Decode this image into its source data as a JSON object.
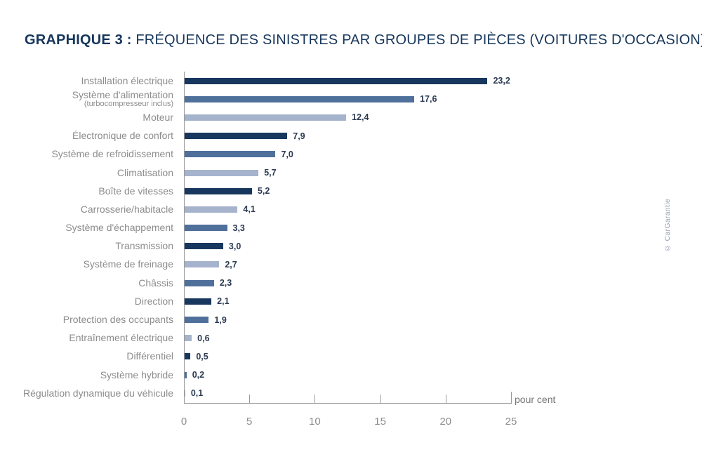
{
  "title": {
    "prefix": "GRAPHIQUE 3 :",
    "text": " FRÉQUENCE DES SINISTRES PAR GROUPES DE PIÈCES (VOITURES D'OCCASION)"
  },
  "credit": "© CarGarantie",
  "axis": {
    "unit_label": "pour cent"
  },
  "colors": {
    "dark": "#17375e",
    "medium": "#4f709b",
    "light": "#a5b3cd"
  },
  "chart_data": {
    "type": "bar",
    "orientation": "horizontal",
    "title": "GRAPHIQUE 3 : FRÉQUENCE DES SINISTRES PAR GROUPES DE PIÈCES (VOITURES D'OCCASION)",
    "xlabel": "pour cent",
    "xlim": [
      0,
      25
    ],
    "x_ticks": [
      0,
      5,
      10,
      15,
      20,
      25
    ],
    "grid": false,
    "legend": false,
    "rows": [
      {
        "label": "Installation électrique",
        "value": 23.2,
        "display": "23,2",
        "color": "dark"
      },
      {
        "label": "Système d'alimentation",
        "sublabel": "(turbocompresseur inclus)",
        "value": 17.6,
        "display": "17,6",
        "color": "medium"
      },
      {
        "label": "Moteur",
        "value": 12.4,
        "display": "12,4",
        "color": "light"
      },
      {
        "label": "Électronique de confort",
        "value": 7.9,
        "display": "7,9",
        "color": "dark"
      },
      {
        "label": "Système de refroidissement",
        "value": 7.0,
        "display": "7,0",
        "color": "medium"
      },
      {
        "label": "Climatisation",
        "value": 5.7,
        "display": "5,7",
        "color": "light"
      },
      {
        "label": "Boîte de vitesses",
        "value": 5.2,
        "display": "5,2",
        "color": "dark"
      },
      {
        "label": "Carrosserie/habitacle",
        "value": 4.1,
        "display": "4,1",
        "color": "light"
      },
      {
        "label": "Système d'échappement",
        "value": 3.3,
        "display": "3,3",
        "color": "medium"
      },
      {
        "label": "Transmission",
        "value": 3.0,
        "display": "3,0",
        "color": "dark"
      },
      {
        "label": "Système de freinage",
        "value": 2.7,
        "display": "2,7",
        "color": "light"
      },
      {
        "label": "Châssis",
        "value": 2.3,
        "display": "2,3",
        "color": "medium"
      },
      {
        "label": "Direction",
        "value": 2.1,
        "display": "2,1",
        "color": "dark"
      },
      {
        "label": "Protection des occupants",
        "value": 1.9,
        "display": "1,9",
        "color": "medium"
      },
      {
        "label": "Entraînement électrique",
        "value": 0.6,
        "display": "0,6",
        "color": "light"
      },
      {
        "label": "Différentiel",
        "value": 0.5,
        "display": "0,5",
        "color": "dark"
      },
      {
        "label": "Système hybride",
        "value": 0.2,
        "display": "0,2",
        "color": "medium"
      },
      {
        "label": "Régulation dynamique du véhicule",
        "value": 0.1,
        "display": "0,1",
        "color": "light"
      }
    ]
  }
}
